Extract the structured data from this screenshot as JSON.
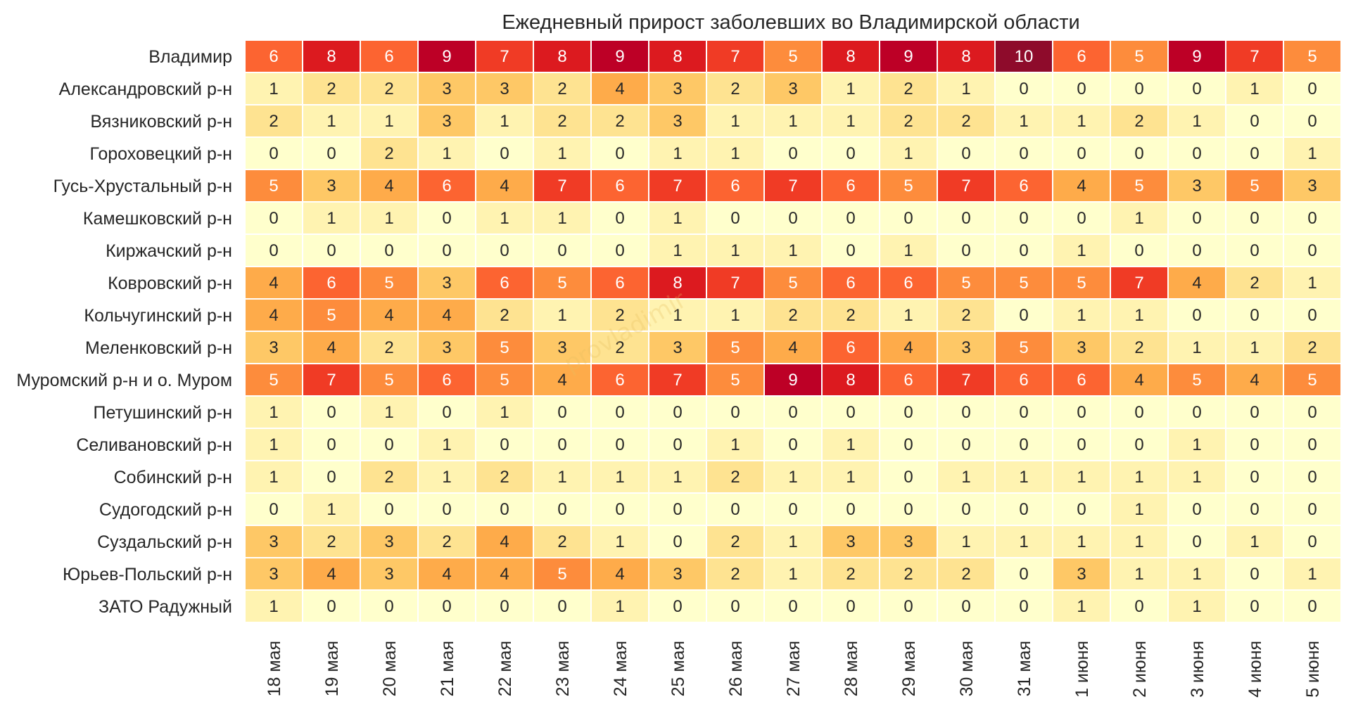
{
  "chart_data": {
    "type": "heatmap",
    "title": "Ежедневный прирост заболевших во Владимирской области",
    "xlabel": "",
    "ylabel": "",
    "colormap": "YlOrRd",
    "vmin": 0,
    "vmax": 10,
    "watermark": "provladimir",
    "columns": [
      "18 мая",
      "19 мая",
      "20 мая",
      "21 мая",
      "22 мая",
      "23 мая",
      "24 мая",
      "25 мая",
      "26 мая",
      "27 мая",
      "28 мая",
      "29 мая",
      "30 мая",
      "31 мая",
      "1 июня",
      "2 июня",
      "3 июня",
      "4 июня",
      "5 июня"
    ],
    "rows": [
      "Владимир",
      "Александровский р-н",
      "Вязниковский р-н",
      "Гороховецкий р-н",
      "Гусь-Хрустальный р-н",
      "Камешковский р-н",
      "Киржачский р-н",
      "Ковровский р-н",
      "Кольчугинский р-н",
      "Меленковский р-н",
      "Муромский р-н и о. Муром",
      "Петушинский р-н",
      "Селивановский р-н",
      "Собинский р-н",
      "Судогодский р-н",
      "Суздальский р-н",
      "Юрьев-Польский р-н",
      "ЗАТО Радужный"
    ],
    "values": [
      [
        6,
        8,
        6,
        9,
        7,
        8,
        9,
        8,
        7,
        5,
        8,
        9,
        8,
        10,
        6,
        5,
        9,
        7,
        5
      ],
      [
        1,
        2,
        2,
        3,
        3,
        2,
        4,
        3,
        2,
        3,
        1,
        2,
        1,
        0,
        0,
        0,
        0,
        1,
        0
      ],
      [
        2,
        1,
        1,
        3,
        1,
        2,
        2,
        3,
        1,
        1,
        1,
        2,
        2,
        1,
        1,
        2,
        1,
        0,
        0
      ],
      [
        0,
        0,
        2,
        1,
        0,
        1,
        0,
        1,
        1,
        0,
        0,
        1,
        0,
        0,
        0,
        0,
        0,
        0,
        1
      ],
      [
        5,
        3,
        4,
        6,
        4,
        7,
        6,
        7,
        6,
        7,
        6,
        5,
        7,
        6,
        4,
        5,
        3,
        5,
        3
      ],
      [
        0,
        1,
        1,
        0,
        1,
        1,
        0,
        1,
        0,
        0,
        0,
        0,
        0,
        0,
        0,
        1,
        0,
        0,
        0
      ],
      [
        0,
        0,
        0,
        0,
        0,
        0,
        0,
        1,
        1,
        1,
        0,
        1,
        0,
        0,
        1,
        0,
        0,
        0,
        0
      ],
      [
        4,
        6,
        5,
        3,
        6,
        5,
        6,
        8,
        7,
        5,
        6,
        6,
        5,
        5,
        5,
        7,
        4,
        2,
        1
      ],
      [
        4,
        5,
        4,
        4,
        2,
        1,
        2,
        1,
        1,
        2,
        2,
        1,
        2,
        0,
        1,
        1,
        0,
        0,
        0
      ],
      [
        3,
        4,
        2,
        3,
        5,
        3,
        2,
        3,
        5,
        4,
        6,
        4,
        3,
        5,
        3,
        2,
        1,
        1,
        2
      ],
      [
        5,
        7,
        5,
        6,
        5,
        4,
        6,
        7,
        5,
        9,
        8,
        6,
        7,
        6,
        6,
        4,
        5,
        4,
        5
      ],
      [
        1,
        0,
        1,
        0,
        1,
        0,
        0,
        0,
        0,
        0,
        0,
        0,
        0,
        0,
        0,
        0,
        0,
        0,
        0
      ],
      [
        1,
        0,
        0,
        1,
        0,
        0,
        0,
        0,
        1,
        0,
        1,
        0,
        0,
        0,
        0,
        0,
        1,
        0,
        0
      ],
      [
        1,
        0,
        2,
        1,
        2,
        1,
        1,
        1,
        2,
        1,
        1,
        0,
        1,
        1,
        1,
        1,
        1,
        0,
        0
      ],
      [
        0,
        1,
        0,
        0,
        0,
        0,
        0,
        0,
        0,
        0,
        0,
        0,
        0,
        0,
        0,
        1,
        0,
        0,
        0
      ],
      [
        3,
        2,
        3,
        2,
        4,
        2,
        1,
        0,
        2,
        1,
        3,
        3,
        1,
        1,
        1,
        1,
        0,
        1,
        0
      ],
      [
        3,
        4,
        3,
        4,
        4,
        5,
        4,
        3,
        2,
        1,
        2,
        2,
        2,
        0,
        3,
        1,
        1,
        0,
        1
      ],
      [
        1,
        0,
        0,
        0,
        0,
        0,
        1,
        0,
        0,
        0,
        0,
        0,
        0,
        0,
        1,
        0,
        1,
        0,
        0
      ]
    ]
  },
  "palette": [
    "#ffffcc",
    "#fff3b1",
    "#fee391",
    "#fec866",
    "#feab4a",
    "#fd8c3c",
    "#fc6431",
    "#f03b25",
    "#dc1a1f",
    "#bd0026",
    "#8e0b2b"
  ]
}
